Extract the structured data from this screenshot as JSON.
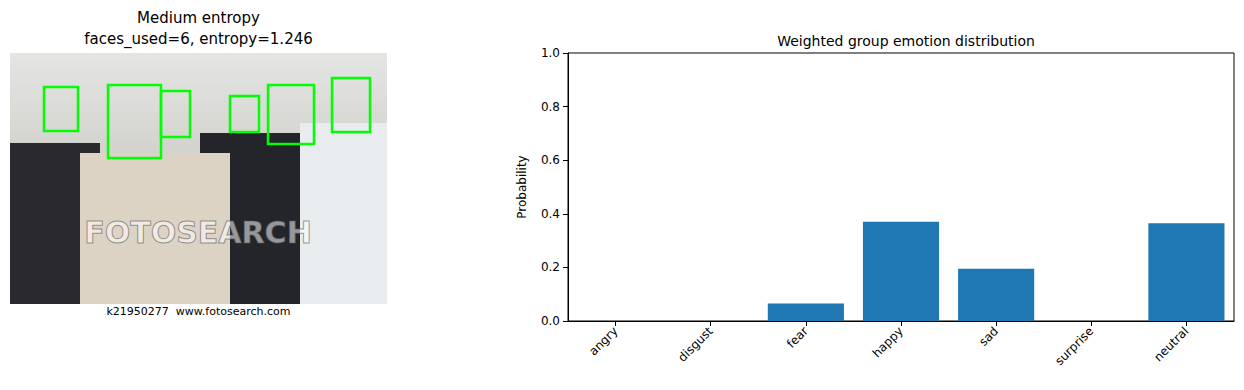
{
  "chart_data": [
    {
      "type": "image",
      "title": "Medium entropy\nfaces_used=6, entropy=1.246",
      "annotations": [
        "FOTOSEARCH",
        "k21950277  www.fotosearch.com"
      ]
    },
    {
      "type": "bar",
      "title": "Weighted group emotion distribution",
      "y_label": "Probability",
      "categories": [
        "angry",
        "disgust",
        "fear",
        "happy",
        "sad",
        "surprise",
        "neutral"
      ],
      "values": [
        0.0,
        0.0,
        0.065,
        0.37,
        0.195,
        0.0,
        0.365
      ],
      "color": "#1f77b4",
      "ylim": [
        0,
        1
      ],
      "yticks": [
        {
          "value": 0,
          "label": "0.0"
        },
        {
          "value": 0.2,
          "label": "0.2"
        },
        {
          "value": 0.4,
          "label": "0.4"
        },
        {
          "value": 0.6,
          "label": "0.6"
        },
        {
          "value": 0.8,
          "label": "0.8"
        },
        {
          "value": 1,
          "label": "1.0"
        }
      ],
      "grid": false
    }
  ]
}
